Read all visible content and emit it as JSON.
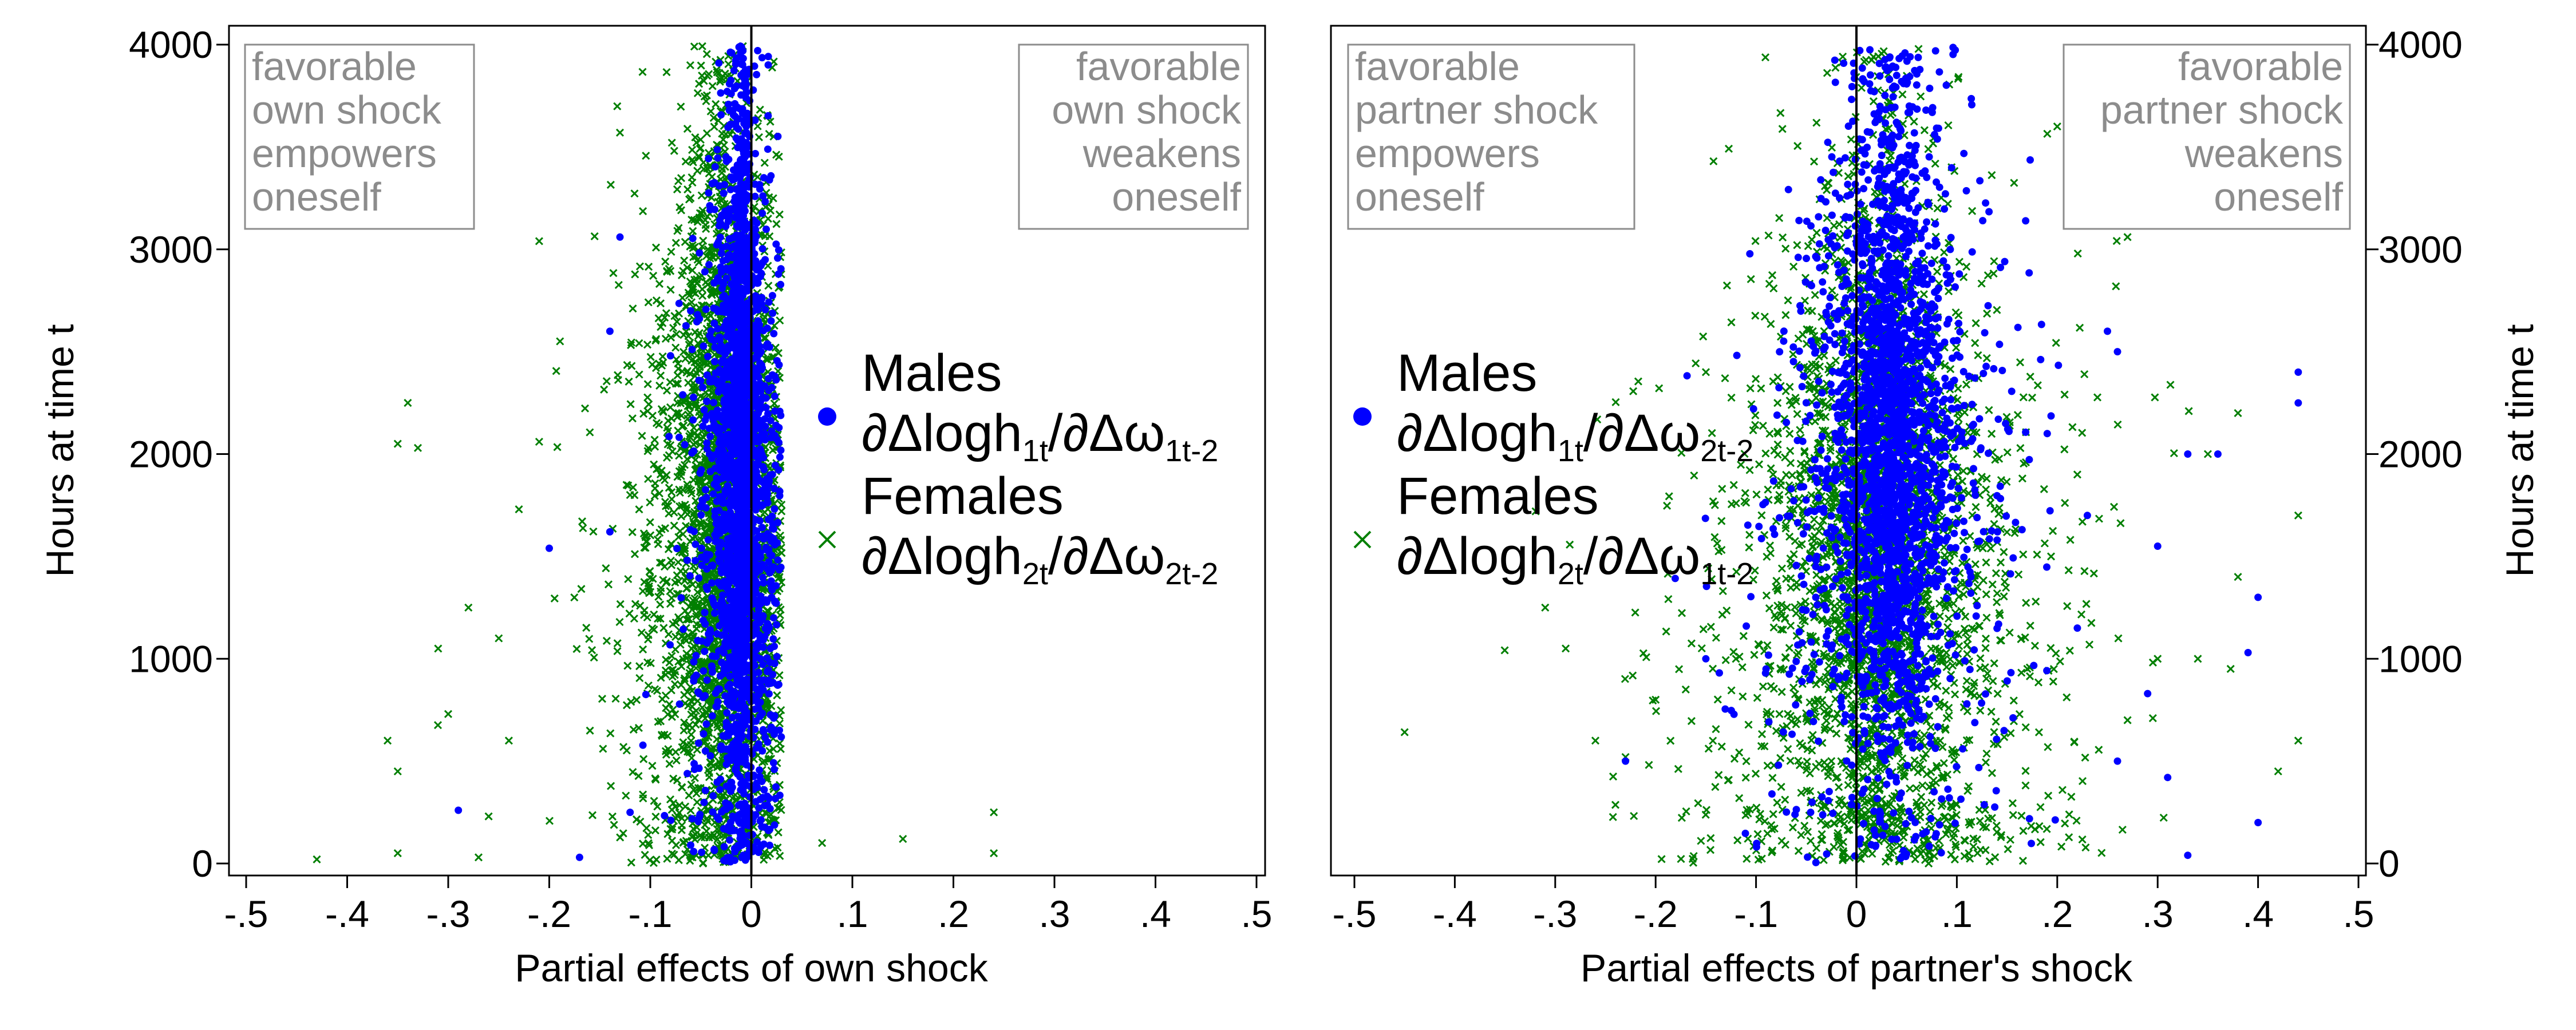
{
  "chart_data": [
    {
      "type": "scatter",
      "panel": "left",
      "xlabel": "Partial effects of own shock",
      "ylabel": "Hours at time t",
      "xlim": [
        -0.5,
        0.5
      ],
      "ylim": [
        0,
        4000
      ],
      "x_ticks": [
        -0.5,
        -0.4,
        -0.3,
        -0.2,
        -0.1,
        0,
        0.1,
        0.2,
        0.3,
        0.4,
        0.5
      ],
      "x_tick_labels": [
        "-.5",
        "-.4",
        "-.3",
        "-.2",
        "-.1",
        "0",
        ".1",
        ".2",
        ".3",
        ".4",
        ".5"
      ],
      "y_ticks": [
        0,
        1000,
        2000,
        3000,
        4000
      ],
      "y_tick_labels": [
        "0",
        "1000",
        "2000",
        "3000",
        "4000"
      ],
      "reference_line_x": 0,
      "annotations": [
        {
          "position": "top-left",
          "lines": [
            "favorable",
            "own shock",
            "empowers",
            "oneself"
          ]
        },
        {
          "position": "top-right",
          "lines": [
            "favorable",
            "own shock",
            "weakens",
            "oneself"
          ]
        }
      ],
      "legend": {
        "placement": "right",
        "entries": [
          {
            "marker": "dot",
            "color": "#0000ff",
            "label": "Males",
            "formula": {
              "p1": "∂Δlogh",
              "s1": "1t",
              "p2": "/∂Δω",
              "s2": "1t-2"
            }
          },
          {
            "marker": "x",
            "color": "#007f00",
            "label": "Females",
            "formula": {
              "p1": "∂Δlogh",
              "s1": "2t",
              "p2": "/∂Δω",
              "s2": "2t-2"
            }
          }
        ]
      },
      "series": [
        {
          "name": "Males",
          "marker": "dot",
          "color": "#0000ff",
          "n_points": 2600,
          "dist": {
            "x_center": -0.01,
            "x_spread": 0.014,
            "y_center": 1850,
            "y_spread": 900,
            "y_min": 0,
            "y_max": 4000
          },
          "outliers": [
            [
              -0.29,
              260
            ],
            [
              -0.13,
              3060
            ],
            [
              -0.14,
              2600
            ],
            [
              -0.2,
              1540
            ],
            [
              -0.17,
              30
            ],
            [
              -0.14,
              1620
            ],
            [
              -0.12,
              250
            ],
            [
              -0.08,
              2480
            ],
            [
              -0.06,
              2700
            ]
          ]
        },
        {
          "name": "Females",
          "marker": "x",
          "color": "#007f00",
          "n_points": 3200,
          "dist": {
            "x_center": -0.03,
            "x_spread": 0.03,
            "y_center": 1700,
            "y_spread": 950,
            "y_min": 0,
            "y_max": 4000
          },
          "outliers": [
            [
              -0.43,
              20
            ],
            [
              -0.36,
              600
            ],
            [
              -0.35,
              450
            ],
            [
              -0.35,
              50
            ],
            [
              -0.34,
              2250
            ],
            [
              -0.35,
              2050
            ],
            [
              -0.33,
              2030
            ],
            [
              -0.31,
              1050
            ],
            [
              -0.3,
              730
            ],
            [
              -0.28,
              1250
            ],
            [
              -0.27,
              30
            ],
            [
              -0.26,
              230
            ],
            [
              -0.25,
              1100
            ],
            [
              -0.24,
              600
            ],
            [
              -0.23,
              1730
            ],
            [
              -0.21,
              3040
            ],
            [
              -0.21,
              2060
            ],
            [
              -0.13,
              3570
            ],
            [
              -0.12,
              1800
            ],
            [
              0.07,
              100
            ],
            [
              0.15,
              120
            ],
            [
              0.24,
              250
            ],
            [
              0.24,
              50
            ]
          ]
        }
      ]
    },
    {
      "type": "scatter",
      "panel": "right",
      "xlabel": "Partial effects of partner's shock",
      "ylabel": "Hours at time t",
      "xlim": [
        -0.5,
        0.5
      ],
      "ylim": [
        0,
        4000
      ],
      "x_ticks": [
        -0.5,
        -0.4,
        -0.3,
        -0.2,
        -0.1,
        0,
        0.1,
        0.2,
        0.3,
        0.4,
        0.5
      ],
      "x_tick_labels": [
        "-.5",
        "-.4",
        "-.3",
        "-.2",
        "-.1",
        "0",
        ".1",
        ".2",
        ".3",
        ".4",
        ".5"
      ],
      "y_ticks": [
        0,
        1000,
        2000,
        3000,
        4000
      ],
      "y_tick_labels": [
        "0",
        "1000",
        "2000",
        "3000",
        "4000"
      ],
      "reference_line_x": 0,
      "annotations": [
        {
          "position": "top-left",
          "lines": [
            "favorable",
            "partner shock",
            "empowers",
            "oneself"
          ]
        },
        {
          "position": "top-right",
          "lines": [
            "favorable",
            "partner shock",
            "weakens",
            "oneself"
          ]
        }
      ],
      "legend": {
        "placement": "left",
        "entries": [
          {
            "marker": "dot",
            "color": "#0000ff",
            "label": "Males",
            "formula": {
              "p1": "∂Δlogh",
              "s1": "1t",
              "p2": "/∂Δω",
              "s2": "2t-2"
            }
          },
          {
            "marker": "x",
            "color": "#007f00",
            "label": "Females",
            "formula": {
              "p1": "∂Δlogh",
              "s1": "2t",
              "p2": "/∂Δω",
              "s2": "1t-2"
            }
          }
        ]
      },
      "series": [
        {
          "name": "Males",
          "marker": "dot",
          "color": "#0000ff",
          "n_points": 2600,
          "dist": {
            "x_center": 0.035,
            "x_spread": 0.035,
            "y_center": 2000,
            "y_spread": 850,
            "y_min": 0,
            "y_max": 4000
          },
          "outliers": [
            [
              -0.23,
              500
            ],
            [
              -0.15,
              1000
            ],
            [
              -0.09,
              950
            ],
            [
              0.22,
              1150
            ],
            [
              0.25,
              2600
            ],
            [
              0.26,
              2500
            ],
            [
              0.3,
              1550
            ],
            [
              0.33,
              2000
            ],
            [
              0.36,
              2000
            ],
            [
              0.39,
              1030
            ],
            [
              0.4,
              1300
            ],
            [
              0.44,
              2400
            ],
            [
              0.44,
              2250
            ],
            [
              0.29,
              830
            ],
            [
              0.31,
              420
            ],
            [
              0.4,
              200
            ],
            [
              0.33,
              40
            ],
            [
              0.26,
              500
            ],
            [
              0.23,
              1700
            ],
            [
              0.19,
              2100
            ]
          ]
        },
        {
          "name": "Females",
          "marker": "x",
          "color": "#007f00",
          "n_points": 3200,
          "dist": {
            "x_center": 0.02,
            "x_spread": 0.055,
            "y_center": 1500,
            "y_spread": 950,
            "y_min": 0,
            "y_max": 4000
          },
          "outliers": [
            [
              -0.31,
              1250
            ],
            [
              -0.26,
              600
            ],
            [
              -0.23,
              520
            ],
            [
              -0.2,
              800
            ],
            [
              -0.17,
              850
            ],
            [
              -0.12,
              1000
            ],
            [
              -0.08,
              1200
            ],
            [
              0.27,
              3060
            ],
            [
              0.3,
              1000
            ],
            [
              0.35,
              2000
            ],
            [
              0.38,
              1400
            ],
            [
              0.42,
              450
            ],
            [
              0.44,
              600
            ],
            [
              0.44,
              1700
            ],
            [
              0.38,
              2200
            ],
            [
              0.34,
              1000
            ],
            [
              0.27,
              700
            ],
            [
              0.22,
              1900
            ],
            [
              0.2,
              3600
            ]
          ]
        }
      ]
    }
  ]
}
